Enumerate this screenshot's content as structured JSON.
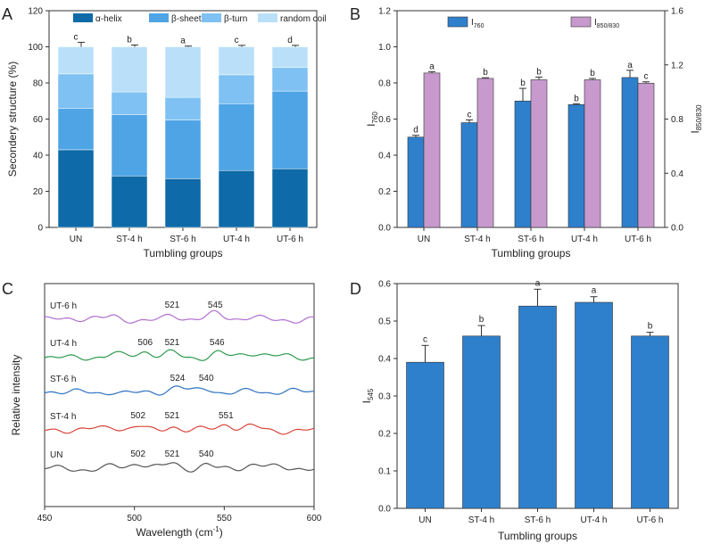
{
  "panels": {
    "a": "A",
    "b": "B",
    "c": "C",
    "d": "D"
  },
  "chart_data": [
    {
      "id": "A",
      "type": "bar",
      "stacked": true,
      "categories": [
        "UN",
        "ST-4 h",
        "ST-6 h",
        "UT-4 h",
        "UT-6 h"
      ],
      "xlabel": "Tumbling groups",
      "ylabel": "Secondery structure (%)",
      "ylim": [
        0,
        120
      ],
      "yticks": [
        0,
        20,
        40,
        60,
        80,
        100,
        120
      ],
      "series": [
        {
          "name": "α-helix",
          "color": "#0e6aa8",
          "values": [
            43,
            28.5,
            27,
            31.5,
            32.5
          ],
          "err": [
            0.8,
            1.2,
            0.6,
            1.3,
            1.0
          ],
          "labels": [
            "a",
            "c",
            "c",
            "b",
            "b"
          ]
        },
        {
          "name": "β-sheet",
          "color": "#4fa4e6",
          "values": [
            23,
            34,
            32.5,
            37,
            43
          ],
          "err": [
            1.5,
            1.5,
            1.0,
            0.8,
            2.5
          ],
          "labels": [
            "d",
            "c",
            "c",
            "b",
            "a"
          ]
        },
        {
          "name": "β-turn",
          "color": "#7ec1f2",
          "values": [
            19,
            12.5,
            12.5,
            16,
            13
          ],
          "err": [
            0.8,
            0.6,
            0.4,
            2.5,
            3.5
          ],
          "labels": [
            "a",
            "c",
            "c",
            "ab",
            "bc"
          ]
        },
        {
          "name": "random coil",
          "color": "#b9e0f8",
          "values": [
            15,
            25,
            28,
            15.5,
            11.5
          ],
          "err": [
            2.5,
            1.0,
            0.4,
            0.8,
            0.8
          ],
          "labels": [
            "c",
            "b",
            "a",
            "c",
            "d"
          ]
        }
      ]
    },
    {
      "id": "B",
      "type": "bar",
      "categories": [
        "UN",
        "ST-4 h",
        "ST-6 h",
        "UT-4 h",
        "UT-6 h"
      ],
      "xlabel": "Tumbling groups",
      "ylabel_main": "I",
      "ylabel_sub": "760",
      "y2label_main": "I",
      "y2label_sub": "850/830",
      "ylim": [
        0,
        1.2
      ],
      "yticks": [
        0.0,
        0.2,
        0.4,
        0.6,
        0.8,
        1.0,
        1.2
      ],
      "y2lim": [
        0,
        1.6
      ],
      "y2ticks": [
        0.0,
        0.4,
        0.8,
        1.2,
        1.6
      ],
      "series": [
        {
          "name_main": "I",
          "name_sub": "760",
          "axis": "left",
          "color": "#2f80cc",
          "values": [
            0.5,
            0.58,
            0.7,
            0.68,
            0.83
          ],
          "err": [
            0.01,
            0.015,
            0.07,
            0.005,
            0.04
          ],
          "labels": [
            "d",
            "c",
            "b",
            "b",
            "a"
          ]
        },
        {
          "name_main": "I",
          "name_sub": "850/830",
          "axis": "right",
          "color": "#c799cc",
          "values": [
            1.14,
            1.1,
            1.09,
            1.09,
            1.065
          ],
          "err": [
            0.01,
            0.005,
            0.02,
            0.01,
            0.01
          ],
          "labels": [
            "a",
            "b",
            "b",
            "b",
            "c"
          ]
        }
      ]
    },
    {
      "id": "C",
      "type": "line",
      "xlabel_main": "Wavelength (cm",
      "xlabel_sup": "-1",
      "xlabel_end": ")",
      "ylabel": "Relative intensity",
      "xlim": [
        450,
        600
      ],
      "xticks": [
        450,
        500,
        550,
        600
      ],
      "series": [
        {
          "name": "UN",
          "color": "#555555",
          "offset": 0,
          "peaks": [
            {
              "x": 502,
              "label": "502"
            },
            {
              "x": 521,
              "label": "521"
            },
            {
              "x": 540,
              "label": "540"
            }
          ]
        },
        {
          "name": "ST-4 h",
          "color": "#d9453b",
          "offset": 1,
          "peaks": [
            {
              "x": 502,
              "label": "502"
            },
            {
              "x": 521,
              "label": "521"
            },
            {
              "x": 551,
              "label": "551"
            }
          ]
        },
        {
          "name": "ST-6 h",
          "color": "#2f72c0",
          "offset": 2,
          "peaks": [
            {
              "x": 524,
              "label": "524"
            },
            {
              "x": 540,
              "label": "540"
            }
          ]
        },
        {
          "name": "UT-4 h",
          "color": "#2e9a4e",
          "offset": 3,
          "peaks": [
            {
              "x": 506,
              "label": "506"
            },
            {
              "x": 521,
              "label": "521"
            },
            {
              "x": 546,
              "label": "546"
            }
          ]
        },
        {
          "name": "UT-6 h",
          "color": "#b06fd0",
          "offset": 4,
          "peaks": [
            {
              "x": 521,
              "label": "521"
            },
            {
              "x": 545,
              "label": "545"
            }
          ]
        }
      ]
    },
    {
      "id": "D",
      "type": "bar",
      "categories": [
        "UN",
        "ST-4 h",
        "ST-6 h",
        "UT-4 h",
        "UT-6 h"
      ],
      "xlabel": "Tumbling groups",
      "ylabel_main": "I",
      "ylabel_sub": "545",
      "ylim": [
        0,
        0.6
      ],
      "yticks": [
        0.0,
        0.1,
        0.2,
        0.3,
        0.4,
        0.5,
        0.6
      ],
      "values": [
        0.39,
        0.46,
        0.54,
        0.55,
        0.46
      ],
      "err": [
        0.045,
        0.028,
        0.045,
        0.015,
        0.01
      ],
      "labels": [
        "c",
        "b",
        "a",
        "a",
        "b"
      ],
      "color": "#2f80cc"
    }
  ]
}
